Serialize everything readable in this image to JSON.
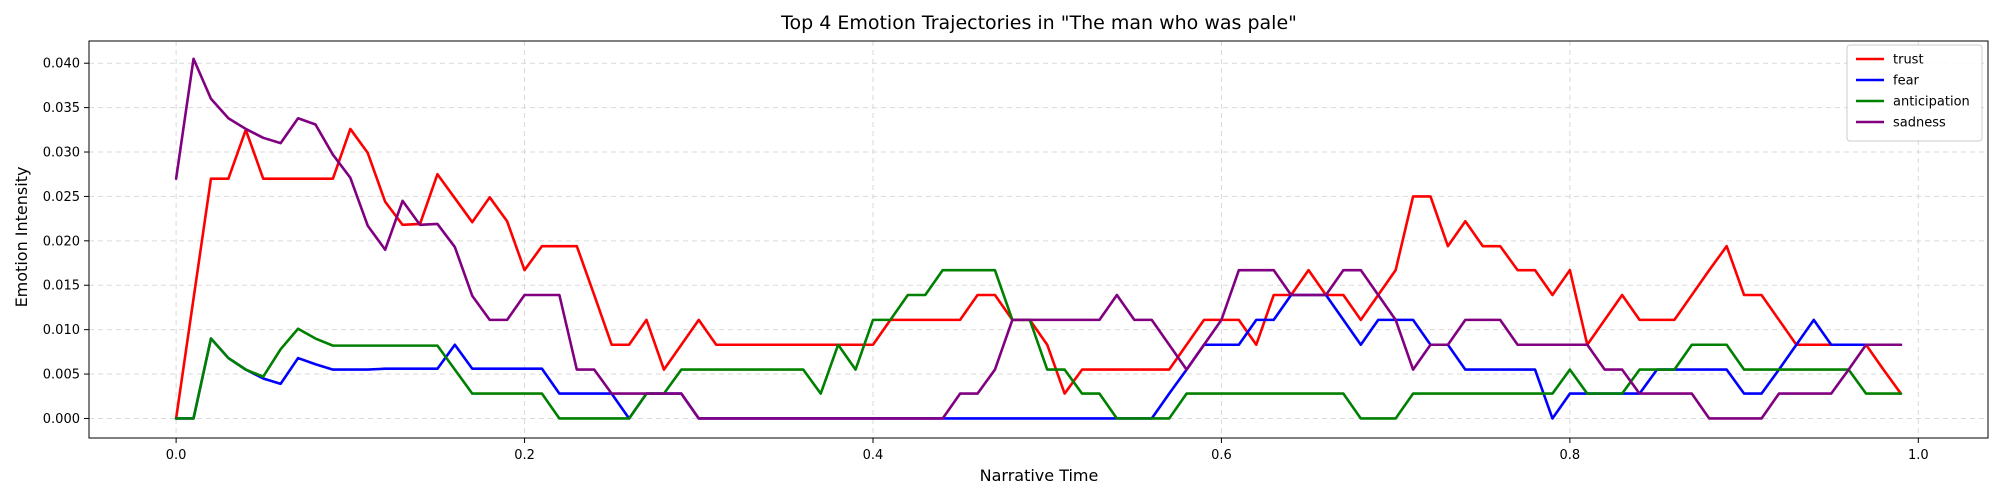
{
  "chart_data": {
    "type": "line",
    "title": "Top 4 Emotion Trajectories in \"The man who was pale\"",
    "xlabel": "Narrative Time",
    "ylabel": "Emotion Intensity",
    "xlim": [
      -0.05,
      1.04
    ],
    "ylim": [
      -0.0022,
      0.0425
    ],
    "xticks": [
      0.0,
      0.2,
      0.4,
      0.6,
      0.8,
      1.0
    ],
    "xtick_labels": [
      "0.0",
      "0.2",
      "0.4",
      "0.6",
      "0.8",
      "1.0"
    ],
    "yticks": [
      0.0,
      0.005,
      0.01,
      0.015,
      0.02,
      0.025,
      0.03,
      0.035,
      0.04
    ],
    "ytick_labels": [
      "0.000",
      "0.005",
      "0.010",
      "0.015",
      "0.020",
      "0.025",
      "0.030",
      "0.035",
      "0.040"
    ],
    "grid": true,
    "legend_position": "top-right",
    "x": [
      0.0,
      0.01,
      0.02,
      0.03,
      0.04,
      0.05,
      0.06,
      0.07,
      0.08,
      0.09,
      0.1,
      0.11,
      0.12,
      0.13,
      0.14,
      0.15,
      0.16,
      0.17,
      0.18,
      0.19,
      0.2,
      0.21,
      0.22,
      0.23,
      0.24,
      0.25,
      0.26,
      0.27,
      0.28,
      0.29,
      0.3,
      0.31,
      0.32,
      0.33,
      0.34,
      0.35,
      0.36,
      0.37,
      0.38,
      0.39,
      0.4,
      0.41,
      0.42,
      0.43,
      0.44,
      0.45,
      0.46,
      0.47,
      0.48,
      0.49,
      0.5,
      0.51,
      0.52,
      0.53,
      0.54,
      0.55,
      0.56,
      0.57,
      0.58,
      0.59,
      0.6,
      0.61,
      0.62,
      0.63,
      0.64,
      0.65,
      0.66,
      0.67,
      0.68,
      0.69,
      0.7,
      0.71,
      0.72,
      0.73,
      0.74,
      0.75,
      0.76,
      0.77,
      0.78,
      0.79,
      0.8,
      0.81,
      0.82,
      0.83,
      0.84,
      0.85,
      0.86,
      0.87,
      0.88,
      0.89,
      0.9,
      0.91,
      0.92,
      0.93,
      0.94,
      0.95,
      0.96,
      0.97,
      0.98,
      0.99
    ],
    "series": [
      {
        "name": "trust",
        "color": "#ff0000",
        "values": [
          0.0,
          0.0135,
          0.027,
          0.027,
          0.0325,
          0.027,
          0.027,
          0.027,
          0.027,
          0.027,
          0.0326,
          0.0299,
          0.0244,
          0.0218,
          0.0219,
          0.0275,
          0.0248,
          0.0221,
          0.0249,
          0.0222,
          0.0167,
          0.0194,
          0.0194,
          0.0194,
          0.0139,
          0.0083,
          0.0083,
          0.0111,
          0.0055,
          0.0083,
          0.0111,
          0.0083,
          0.0083,
          0.0083,
          0.0083,
          0.0083,
          0.0083,
          0.0083,
          0.0083,
          0.0083,
          0.0083,
          0.0111,
          0.0111,
          0.0111,
          0.0111,
          0.0111,
          0.0139,
          0.0139,
          0.0111,
          0.0111,
          0.0083,
          0.0028,
          0.0055,
          0.0055,
          0.0055,
          0.0055,
          0.0055,
          0.0055,
          0.0083,
          0.0111,
          0.0111,
          0.0111,
          0.0083,
          0.0139,
          0.0139,
          0.0167,
          0.0139,
          0.0139,
          0.0111,
          0.0139,
          0.0167,
          0.025,
          0.025,
          0.0194,
          0.0222,
          0.0194,
          0.0194,
          0.0167,
          0.0167,
          0.0139,
          0.0167,
          0.0083,
          0.0111,
          0.0139,
          0.0111,
          0.0111,
          0.0111,
          0.0139,
          0.0167,
          0.0194,
          0.0139,
          0.0139,
          0.0111,
          0.0083,
          0.0083,
          0.0083,
          0.0083,
          0.0083,
          0.0055,
          0.0028
        ]
      },
      {
        "name": "fear",
        "color": "#0000ff",
        "values": [
          0.0,
          0.0,
          0.009,
          0.0068,
          0.0055,
          0.0045,
          0.0039,
          0.0068,
          0.0061,
          0.0055,
          0.0055,
          0.0055,
          0.0056,
          0.0056,
          0.0056,
          0.0056,
          0.0083,
          0.0056,
          0.0056,
          0.0056,
          0.0056,
          0.0056,
          0.0028,
          0.0028,
          0.0028,
          0.0028,
          0.0,
          0.0028,
          0.0028,
          0.0028,
          0.0,
          0.0,
          0.0,
          0.0,
          0.0,
          0.0,
          0.0,
          0.0,
          0.0,
          0.0,
          0.0,
          0.0,
          0.0,
          0.0,
          0.0,
          0.0,
          0.0,
          0.0,
          0.0,
          0.0,
          0.0,
          0.0,
          0.0,
          0.0,
          0.0,
          0.0,
          0.0,
          0.0028,
          0.0055,
          0.0083,
          0.0083,
          0.0083,
          0.0111,
          0.0111,
          0.0139,
          0.0139,
          0.0139,
          0.0111,
          0.0083,
          0.0111,
          0.0111,
          0.0111,
          0.0083,
          0.0083,
          0.0055,
          0.0055,
          0.0055,
          0.0055,
          0.0055,
          0.0,
          0.0028,
          0.0028,
          0.0028,
          0.0028,
          0.0028,
          0.0055,
          0.0055,
          0.0055,
          0.0055,
          0.0055,
          0.0028,
          0.0028,
          0.0055,
          0.0083,
          0.0111,
          0.0083,
          0.0083,
          0.0083,
          0.0083,
          0.0083
        ]
      },
      {
        "name": "anticipation",
        "color": "#008000",
        "values": [
          0.0,
          0.0,
          0.009,
          0.0068,
          0.0055,
          0.0047,
          0.0078,
          0.0101,
          0.009,
          0.0082,
          0.0082,
          0.0082,
          0.0082,
          0.0082,
          0.0082,
          0.0082,
          0.0055,
          0.0028,
          0.0028,
          0.0028,
          0.0028,
          0.0028,
          0.0,
          0.0,
          0.0,
          0.0,
          0.0,
          0.0028,
          0.0028,
          0.0055,
          0.0055,
          0.0055,
          0.0055,
          0.0055,
          0.0055,
          0.0055,
          0.0055,
          0.0028,
          0.0083,
          0.0055,
          0.0111,
          0.0111,
          0.0139,
          0.0139,
          0.0167,
          0.0167,
          0.0167,
          0.0167,
          0.0111,
          0.0111,
          0.0055,
          0.0055,
          0.0028,
          0.0028,
          0.0,
          0.0,
          0.0,
          0.0,
          0.0028,
          0.0028,
          0.0028,
          0.0028,
          0.0028,
          0.0028,
          0.0028,
          0.0028,
          0.0028,
          0.0028,
          0.0,
          0.0,
          0.0,
          0.0028,
          0.0028,
          0.0028,
          0.0028,
          0.0028,
          0.0028,
          0.0028,
          0.0028,
          0.0028,
          0.0055,
          0.0028,
          0.0028,
          0.0028,
          0.0055,
          0.0055,
          0.0055,
          0.0083,
          0.0083,
          0.0083,
          0.0055,
          0.0055,
          0.0055,
          0.0055,
          0.0055,
          0.0055,
          0.0055,
          0.0028,
          0.0028,
          0.0028
        ]
      },
      {
        "name": "sadness",
        "color": "#800080",
        "values": [
          0.027,
          0.0405,
          0.036,
          0.0338,
          0.0326,
          0.0316,
          0.031,
          0.0338,
          0.0331,
          0.0297,
          0.0271,
          0.0217,
          0.019,
          0.0245,
          0.0218,
          0.0219,
          0.0193,
          0.0138,
          0.0111,
          0.0111,
          0.0139,
          0.0139,
          0.0139,
          0.0055,
          0.0055,
          0.0028,
          0.0028,
          0.0028,
          0.0028,
          0.0028,
          0.0,
          0.0,
          0.0,
          0.0,
          0.0,
          0.0,
          0.0,
          0.0,
          0.0,
          0.0,
          0.0,
          0.0,
          0.0,
          0.0,
          0.0,
          0.0028,
          0.0028,
          0.0055,
          0.0111,
          0.0111,
          0.0111,
          0.0111,
          0.0111,
          0.0111,
          0.0139,
          0.0111,
          0.0111,
          0.0083,
          0.0055,
          0.0083,
          0.0111,
          0.0167,
          0.0167,
          0.0167,
          0.0139,
          0.0139,
          0.0139,
          0.0167,
          0.0167,
          0.0139,
          0.0111,
          0.0055,
          0.0083,
          0.0083,
          0.0111,
          0.0111,
          0.0111,
          0.0083,
          0.0083,
          0.0083,
          0.0083,
          0.0083,
          0.0055,
          0.0055,
          0.0028,
          0.0028,
          0.0028,
          0.0028,
          0.0,
          0.0,
          0.0,
          0.0,
          0.0028,
          0.0028,
          0.0028,
          0.0028,
          0.0055,
          0.0083,
          0.0083,
          0.0083
        ]
      }
    ]
  }
}
